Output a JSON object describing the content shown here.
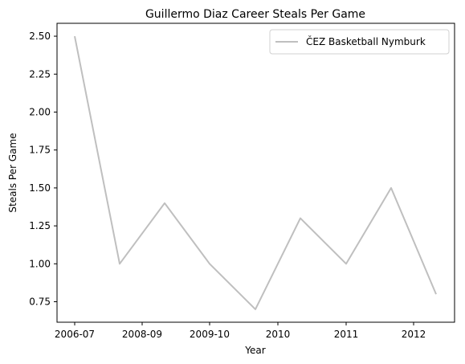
{
  "chart_data": {
    "type": "line",
    "title": "Guillermo Diaz  Career Steals Per Game",
    "xlabel": "Year",
    "ylabel": "Steals Per Game",
    "x_tick_labels": [
      "2006-07",
      "2008-09",
      "2009-10",
      "2010",
      "2011",
      "2012"
    ],
    "y_ticks": [
      0.75,
      1.0,
      1.25,
      1.5,
      1.75,
      2.0,
      2.25,
      2.5
    ],
    "y_tick_labels": [
      "0.75",
      "1.00",
      "1.25",
      "1.50",
      "1.75",
      "2.00",
      "2.25",
      "2.50"
    ],
    "ylim": [
      0.615,
      2.585
    ],
    "grid": false,
    "legend_placement": "top-right",
    "series": [
      {
        "name": "ČEZ Basketball Nymburk",
        "color": "#bfbfbf",
        "values": [
          2.5,
          1.0,
          1.4,
          1.0,
          0.7,
          1.3,
          1.0,
          1.5,
          0.8
        ]
      }
    ]
  }
}
